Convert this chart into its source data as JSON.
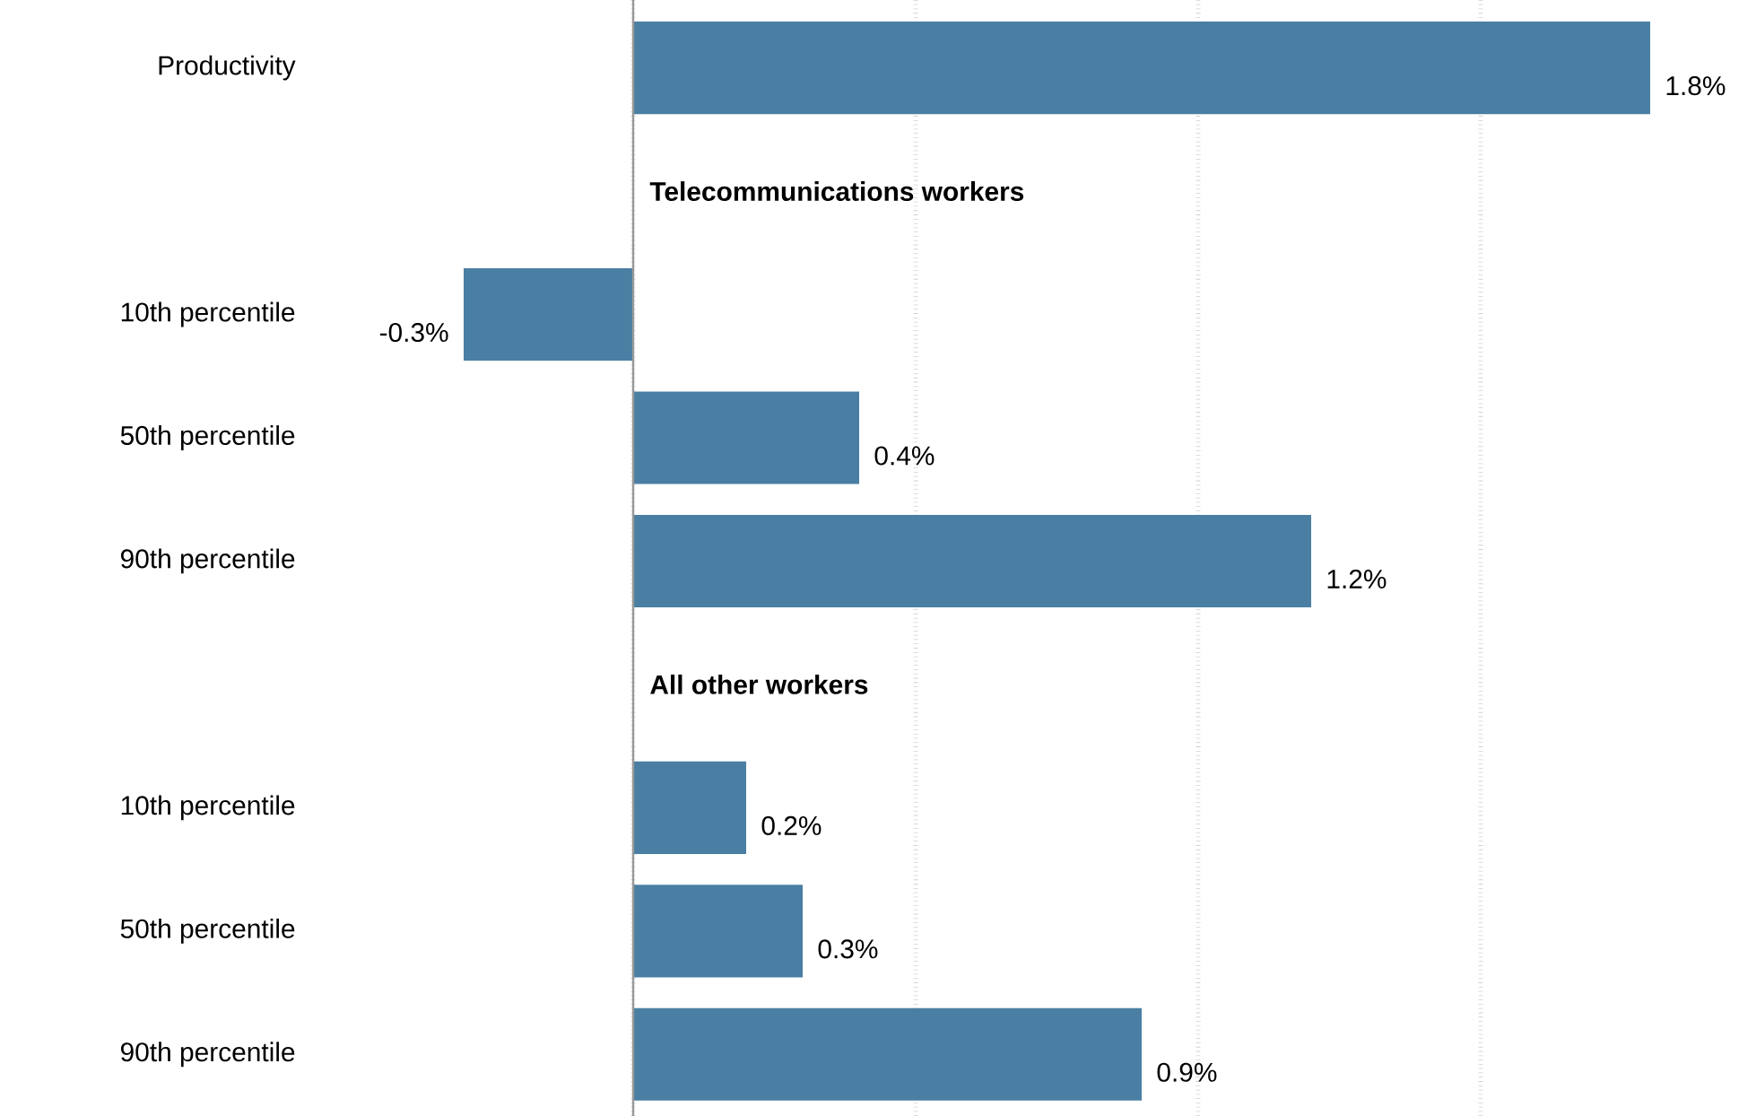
{
  "chart_data": {
    "type": "bar",
    "orientation": "horizontal",
    "categories": [
      "Productivity",
      null,
      "10th percentile",
      "50th percentile",
      "90th percentile",
      null,
      "10th percentile",
      "50th percentile",
      "90th percentile"
    ],
    "values": [
      1.8,
      null,
      -0.3,
      0.4,
      1.2,
      null,
      0.2,
      0.3,
      0.9
    ],
    "value_labels": [
      "1.8%",
      null,
      "-0.3%",
      "0.4%",
      "1.2%",
      null,
      "0.2%",
      "0.3%",
      "0.9%"
    ],
    "color": "#4a7fa3",
    "tick_labels": "y",
    "grid": "x",
    "ref_lines": [
      {
        "axis": "x",
        "value": 0,
        "color": "#999999"
      }
    ],
    "annotations": [
      "Telecommunications workers",
      "All other workers"
    ]
  }
}
